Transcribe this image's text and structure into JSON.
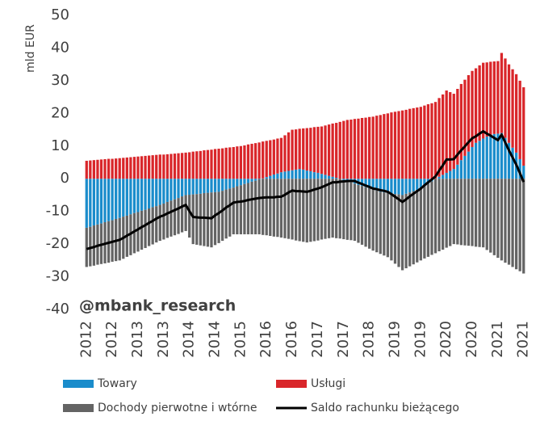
{
  "chart_data": {
    "type": "bar",
    "y_label": "mld EUR",
    "annotation": "@mbank_research",
    "ylim": [
      -40,
      50
    ],
    "yticks": [
      -40,
      -30,
      -20,
      -10,
      0,
      10,
      20,
      30,
      40,
      50
    ],
    "categories": [
      "2012",
      null,
      null,
      null,
      null,
      null,
      null,
      "2012",
      null,
      null,
      null,
      null,
      null,
      null,
      "2013",
      null,
      null,
      null,
      null,
      null,
      null,
      "2013",
      null,
      null,
      null,
      null,
      null,
      null,
      "2014",
      null,
      null,
      null,
      null,
      null,
      null,
      "2014",
      null,
      null,
      null,
      null,
      null,
      null,
      "2015",
      null,
      null,
      null,
      null,
      null,
      null,
      "2016",
      null,
      null,
      null,
      null,
      null,
      null,
      "2016",
      null,
      null,
      null,
      null,
      null,
      null,
      "2017",
      null,
      null,
      null,
      null,
      null,
      null,
      "2017",
      null,
      null,
      null,
      null,
      null,
      null,
      "2018",
      null,
      null,
      null,
      null,
      null,
      null,
      "2019",
      null,
      null,
      null,
      null,
      null,
      null,
      "2019",
      null,
      null,
      null,
      null,
      null,
      null,
      "2020",
      null,
      null,
      null,
      null,
      null,
      null,
      "2020",
      null,
      null,
      null,
      null,
      null,
      null,
      "2021",
      null,
      null,
      null,
      null,
      null,
      null,
      "2021"
    ],
    "series": [
      {
        "name": "Towary",
        "type": "bar",
        "color": "#1a8ccb",
        "values": [
          -15,
          -14.7,
          -14.3,
          -14.0,
          -13.7,
          -13.3,
          -13.0,
          -12.7,
          -12.3,
          -12.0,
          -11.6,
          -11.3,
          -10.9,
          -10.5,
          -10.2,
          -9.8,
          -9.5,
          -9.1,
          -8.7,
          -8.4,
          -8.0,
          -7.6,
          -7.1,
          -6.7,
          -6.3,
          -5.9,
          -5.4,
          -5.0,
          -4.9,
          -4.8,
          -4.7,
          -4.6,
          -4.4,
          -4.3,
          -4.2,
          -4.1,
          -4.0,
          -3.7,
          -3.3,
          -3.0,
          -2.7,
          -2.3,
          -2.0,
          -1.6,
          -1.3,
          -0.9,
          -0.6,
          -0.2,
          0.1,
          0.5,
          0.9,
          1.3,
          1.6,
          2.0,
          2.2,
          2.4,
          2.6,
          2.8,
          3.0,
          2.8,
          2.5,
          2.3,
          2.0,
          1.8,
          1.5,
          1.2,
          0.9,
          0.6,
          0.3,
          0.0,
          -0.4,
          -0.8,
          -1.1,
          -1.5,
          -1.9,
          -2.2,
          -2.6,
          -2.9,
          -3.3,
          -3.6,
          -4.0,
          -4.2,
          -4.3,
          -4.5,
          -4.7,
          -4.8,
          -5.0,
          -4.6,
          -4.2,
          -3.8,
          -3.4,
          -3.0,
          -2.3,
          -1.5,
          -0.8,
          0.0,
          0.6,
          1.2,
          1.8,
          2.4,
          3.0,
          4.3,
          5.7,
          7.0,
          8.3,
          9.7,
          11.0,
          11.6,
          12.3,
          12.9,
          13.5,
          13.7,
          13.8,
          14.0,
          12.5,
          11.0,
          9.5,
          8.0,
          6.0,
          4.0
        ]
      },
      {
        "name": "Usługi",
        "type": "bar",
        "color": "#d9262a",
        "values": [
          5.5,
          5.6,
          5.7,
          5.8,
          5.9,
          6.0,
          6.1,
          6.1,
          6.2,
          6.3,
          6.4,
          6.5,
          6.6,
          6.7,
          6.8,
          6.9,
          7.0,
          7.1,
          7.2,
          7.3,
          7.4,
          7.4,
          7.5,
          7.6,
          7.7,
          7.8,
          7.9,
          8.0,
          8.1,
          8.3,
          8.4,
          8.5,
          8.7,
          8.8,
          8.9,
          9.1,
          9.2,
          9.3,
          9.5,
          9.6,
          9.7,
          9.9,
          10.0,
          10.2,
          10.5,
          10.7,
          10.9,
          11.1,
          11.3,
          11.1,
          10.9,
          10.7,
          10.7,
          10.5,
          11.1,
          11.8,
          12.4,
          12.3,
          12.3,
          12.6,
          13.0,
          13.3,
          13.8,
          14.1,
          14.5,
          15.1,
          15.7,
          16.3,
          16.8,
          17.4,
          17.7,
          18.0,
          18.1,
          18.3,
          18.4,
          18.6,
          18.7,
          18.9,
          19.0,
          19.3,
          19.5,
          19.8,
          20.0,
          20.3,
          20.5,
          20.7,
          20.9,
          21.1,
          21.4,
          21.6,
          21.8,
          22.0,
          22.4,
          22.8,
          23.1,
          23.5,
          24.1,
          24.6,
          25.2,
          24.1,
          23.0,
          23.2,
          23.3,
          23.3,
          23.4,
          23.3,
          22.8,
          23.1,
          23.2,
          22.7,
          22.3,
          22.2,
          22.2,
          24.5,
          24.3,
          24.0,
          24.0,
          24.0,
          24.0,
          24.0
        ]
      },
      {
        "name": "Dochody pierwotne i wtórne",
        "type": "bar",
        "color": "#646464",
        "values": [
          -12.0,
          -12.1,
          -12.3,
          -12.3,
          -12.4,
          -12.6,
          -12.7,
          -12.7,
          -12.9,
          -13.0,
          -12.9,
          -12.6,
          -12.5,
          -12.3,
          -12.1,
          -11.9,
          -11.7,
          -11.5,
          -11.4,
          -11.1,
          -11.0,
          -11.0,
          -11.0,
          -11.0,
          -11.0,
          -11.0,
          -11.0,
          -11.0,
          -13.1,
          -15.2,
          -15.5,
          -15.8,
          -16.2,
          -16.5,
          -16.8,
          -16.2,
          -15.7,
          -15.3,
          -15.0,
          -14.7,
          -14.3,
          -14.7,
          -15.0,
          -15.4,
          -15.7,
          -16.1,
          -16.4,
          -16.8,
          -17.2,
          -17.3,
          -17.5,
          -17.7,
          -17.8,
          -18.0,
          -18.2,
          -18.4,
          -18.6,
          -18.9,
          -19.1,
          -19.3,
          -19.5,
          -19.3,
          -19.1,
          -18.9,
          -18.6,
          -18.4,
          -18.2,
          -18.0,
          -18.2,
          -18.3,
          -18.1,
          -17.9,
          -17.7,
          -17.5,
          -17.7,
          -18.0,
          -18.2,
          -18.5,
          -18.7,
          -18.9,
          -19.0,
          -19.3,
          -19.7,
          -20.5,
          -21.3,
          -22.2,
          -23.0,
          -22.8,
          -22.6,
          -22.4,
          -22.2,
          -22.0,
          -22.1,
          -22.4,
          -22.5,
          -22.8,
          -22.2,
          -21.7,
          -21.1,
          -20.6,
          -20.0,
          -20.1,
          -20.3,
          -20.4,
          -20.5,
          -20.6,
          -20.8,
          -20.9,
          -21.0,
          -21.8,
          -22.6,
          -23.4,
          -24.2,
          -25.0,
          -25.7,
          -26.3,
          -27.0,
          -27.7,
          -28.3,
          -29.0
        ]
      },
      {
        "name": "Saldo rachunku bieżącego",
        "type": "line",
        "color": "#000000",
        "values": [
          -21.5,
          -21.2,
          -20.9,
          -20.5,
          -20.2,
          -19.9,
          -19.6,
          -19.3,
          -19.0,
          -18.7,
          -18.1,
          -17.4,
          -16.8,
          -16.1,
          -15.5,
          -14.8,
          -14.2,
          -13.5,
          -12.9,
          -12.2,
          -11.6,
          -11.2,
          -10.6,
          -10.1,
          -9.6,
          -9.1,
          -8.5,
          -8.0,
          -9.9,
          -11.7,
          -11.8,
          -11.9,
          -11.9,
          -12.0,
          -12.1,
          -11.2,
          -10.5,
          -9.7,
          -8.8,
          -8.1,
          -7.3,
          -7.1,
          -7.0,
          -6.8,
          -6.5,
          -6.3,
          -6.1,
          -5.9,
          -5.8,
          -5.7,
          -5.7,
          -5.7,
          -5.5,
          -5.5,
          -4.9,
          -4.2,
          -3.6,
          -3.8,
          -3.8,
          -3.9,
          -4.0,
          -3.7,
          -3.3,
          -3.0,
          -2.6,
          -2.1,
          -1.6,
          -1.1,
          -1.1,
          -0.9,
          -0.8,
          -0.7,
          -0.7,
          -0.7,
          -1.2,
          -1.6,
          -2.1,
          -2.5,
          -3.0,
          -3.2,
          -3.5,
          -3.7,
          -4.0,
          -4.7,
          -5.5,
          -6.3,
          -7.1,
          -6.3,
          -5.4,
          -4.6,
          -3.8,
          -3.0,
          -2.0,
          -1.1,
          -0.2,
          0.7,
          2.5,
          4.1,
          5.9,
          5.9,
          6.0,
          7.4,
          8.7,
          9.9,
          11.2,
          12.4,
          13.0,
          13.8,
          14.5,
          13.8,
          13.2,
          12.5,
          11.8,
          13.5,
          11.1,
          8.7,
          6.5,
          4.3,
          1.7,
          -1.0
        ]
      }
    ]
  }
}
